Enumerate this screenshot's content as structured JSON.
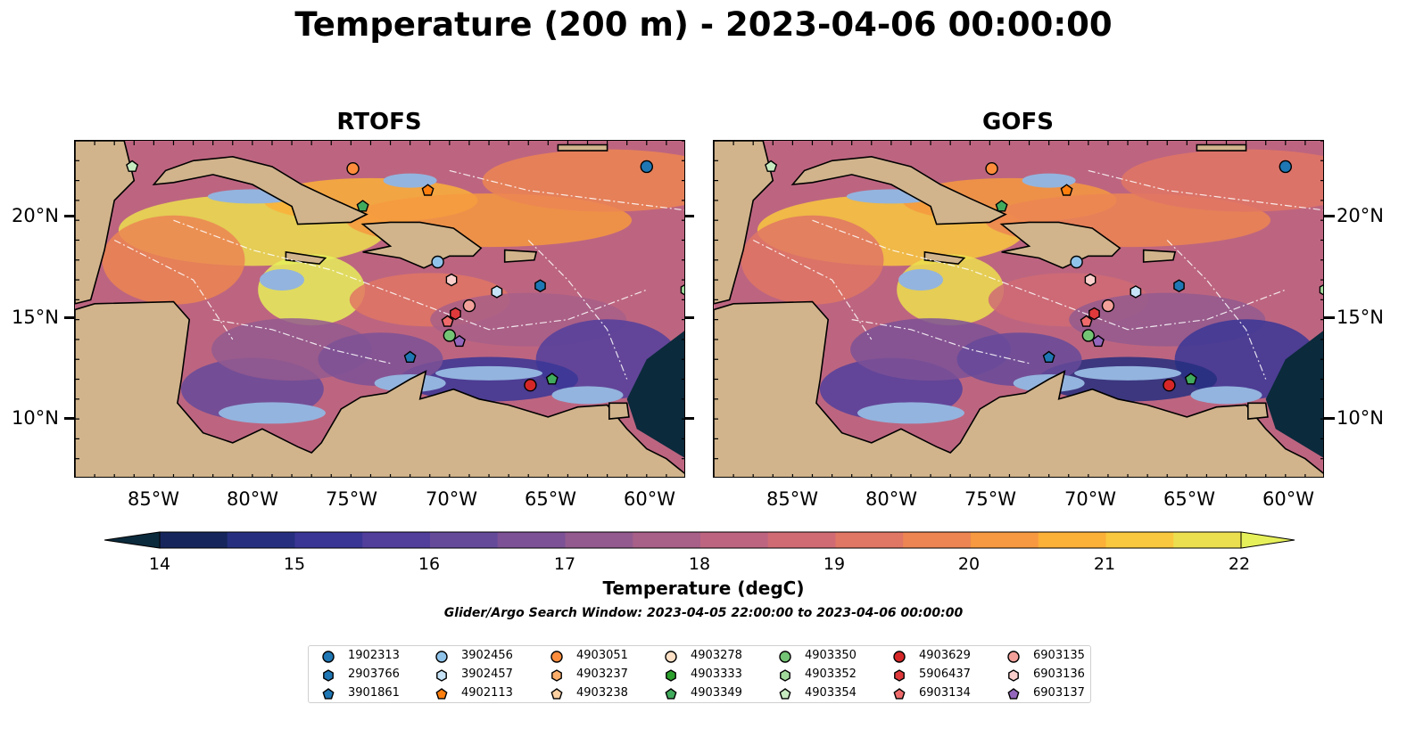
{
  "title": "Temperature (200 m) - 2023-04-06 00:00:00",
  "panels": [
    {
      "title": "RTOFS",
      "palette_shift": 0
    },
    {
      "title": "GOFS",
      "palette_shift": 1
    }
  ],
  "axes": {
    "longitude_labels": [
      "85°W",
      "80°W",
      "75°W",
      "70°W",
      "65°W",
      "60°W"
    ],
    "latitude_labels": [
      "20°N",
      "15°N",
      "10°N"
    ],
    "lon_range": [
      -89,
      -58
    ],
    "lat_range": [
      7,
      24
    ]
  },
  "colorbar": {
    "label": "Temperature (degC)",
    "min": 14,
    "max": 22,
    "ticks": [
      "14",
      "15",
      "16",
      "17",
      "18",
      "19",
      "20",
      "21",
      "22"
    ],
    "colors": [
      "#0b2a3c",
      "#16265c",
      "#262f7f",
      "#3a3696",
      "#523f9c",
      "#664a9a",
      "#7d5196",
      "#935a8f",
      "#a85f88",
      "#bd6580",
      "#d06b74",
      "#e07664",
      "#ec8552",
      "#f69940",
      "#fbb038",
      "#f9c83e",
      "#ecdf4f",
      "#e6f05a"
    ]
  },
  "search_window": "Glider/Argo Search Window: 2023-04-05 22:00:00 to 2023-04-06 00:00:00",
  "legend": [
    {
      "id": "1902313",
      "color": "#1f77b4",
      "marker": "circle"
    },
    {
      "id": "2903766",
      "color": "#1f77b4",
      "marker": "hexagon"
    },
    {
      "id": "3901861",
      "color": "#1f77b4",
      "marker": "pentagon"
    },
    {
      "id": "3902456",
      "color": "#8fc3ea",
      "marker": "circle"
    },
    {
      "id": "3902457",
      "color": "#c6e3f7",
      "marker": "hexagon"
    },
    {
      "id": "4902113",
      "color": "#ff7f0e",
      "marker": "pentagon"
    },
    {
      "id": "4903051",
      "color": "#fd8d3c",
      "marker": "circle"
    },
    {
      "id": "4903237",
      "color": "#fdae6b",
      "marker": "hexagon"
    },
    {
      "id": "4903238",
      "color": "#fdd0a2",
      "marker": "pentagon"
    },
    {
      "id": "4903278",
      "color": "#fde0c5",
      "marker": "circle"
    },
    {
      "id": "4903333",
      "color": "#2ca02c",
      "marker": "hexagon"
    },
    {
      "id": "4903349",
      "color": "#41ab5d",
      "marker": "pentagon"
    },
    {
      "id": "4903350",
      "color": "#74c476",
      "marker": "circle"
    },
    {
      "id": "4903352",
      "color": "#a1d99b",
      "marker": "hexagon"
    },
    {
      "id": "4903354",
      "color": "#c7e9c0",
      "marker": "pentagon"
    },
    {
      "id": "4903629",
      "color": "#d62728",
      "marker": "circle"
    },
    {
      "id": "5906437",
      "color": "#e0393b",
      "marker": "hexagon"
    },
    {
      "id": "6903134",
      "color": "#ef6b6b",
      "marker": "pentagon"
    },
    {
      "id": "6903135",
      "color": "#f4a09a",
      "marker": "circle"
    },
    {
      "id": "6903136",
      "color": "#fbd0cc",
      "marker": "hexagon"
    },
    {
      "id": "6903137",
      "color": "#9467bd",
      "marker": "pentagon"
    }
  ],
  "floats_on_map": [
    {
      "id": "1902313",
      "lon": -60.0,
      "lat": 22.7
    },
    {
      "id": "4903354",
      "lon": -86.1,
      "lat": 22.7
    },
    {
      "id": "4903051",
      "lon": -74.9,
      "lat": 22.6
    },
    {
      "id": "4902113",
      "lon": -71.1,
      "lat": 21.5
    },
    {
      "id": "4903349",
      "lon": -74.4,
      "lat": 20.7
    },
    {
      "id": "3902456",
      "lon": -70.6,
      "lat": 17.9
    },
    {
      "id": "6903136",
      "lon": -69.9,
      "lat": 17.0
    },
    {
      "id": "3902457",
      "lon": -67.6,
      "lat": 16.4
    },
    {
      "id": "2903766",
      "lon": -65.4,
      "lat": 16.7
    },
    {
      "id": "6903135",
      "lon": -69.0,
      "lat": 15.7
    },
    {
      "id": "5906437",
      "lon": -69.7,
      "lat": 15.3
    },
    {
      "id": "6903134",
      "lon": -70.1,
      "lat": 14.9
    },
    {
      "id": "4903350",
      "lon": -70.0,
      "lat": 14.2
    },
    {
      "id": "6903137",
      "lon": -69.5,
      "lat": 13.9
    },
    {
      "id": "3901861",
      "lon": -72.0,
      "lat": 13.1
    },
    {
      "id": "4903629",
      "lon": -65.9,
      "lat": 11.7
    },
    {
      "id": "4903349",
      "lon": -64.8,
      "lat": 12.0
    },
    {
      "id": "4903352",
      "lon": -58.0,
      "lat": 16.5
    }
  ]
}
